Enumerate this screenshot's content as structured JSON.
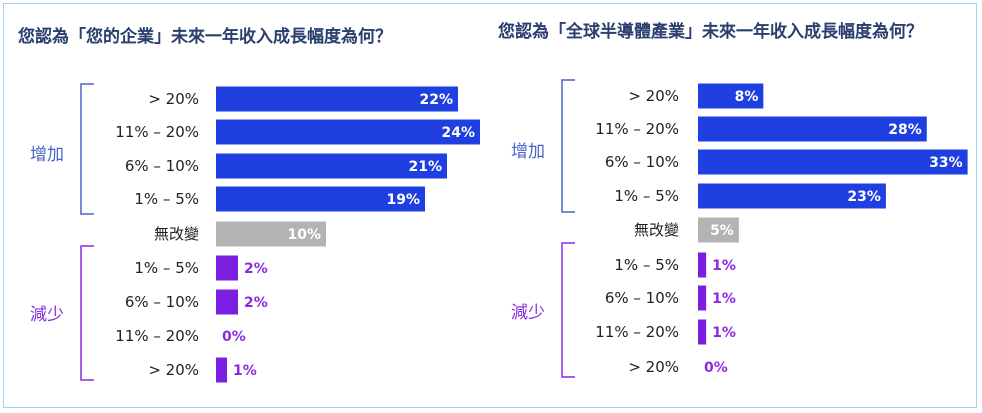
{
  "colors": {
    "increase": "#1f3fe0",
    "nochange": "#b3b3b3",
    "decrease": "#7a1fe0",
    "increase_label": "#4a64c8",
    "decrease_label": "#8a2be2",
    "title": "#2a3f6e"
  },
  "chart_data": [
    {
      "type": "bar",
      "orientation": "horizontal",
      "title": "您認為「您的企業」未來一年收入成長幅度為何？",
      "groups": [
        {
          "label": "增加",
          "categories": [
            "> 20%",
            "11% – 20%",
            "6% – 10%",
            "1% – 5%"
          ],
          "values": [
            22,
            24,
            21,
            19
          ],
          "labels": [
            "22%",
            "24%",
            "21%",
            "19%"
          ]
        },
        {
          "label": "",
          "categories": [
            "無改變"
          ],
          "values": [
            10
          ],
          "labels": [
            "10%"
          ]
        },
        {
          "label": "減少",
          "categories": [
            "1% – 5%",
            "6% – 10%",
            "11% – 20%",
            "> 20%"
          ],
          "values": [
            2,
            2,
            0,
            1
          ],
          "labels": [
            "2%",
            "2%",
            "0%",
            "1%"
          ]
        }
      ]
    },
    {
      "type": "bar",
      "orientation": "horizontal",
      "title": "您認為「全球半導體產業」未來一年收入成長幅度為何？",
      "groups": [
        {
          "label": "增加",
          "categories": [
            "> 20%",
            "11% – 20%",
            "6% – 10%",
            "1% – 5%"
          ],
          "values": [
            8,
            28,
            33,
            23
          ],
          "labels": [
            "8%",
            "28%",
            "33%",
            "23%"
          ]
        },
        {
          "label": "",
          "categories": [
            "無改變"
          ],
          "values": [
            5
          ],
          "labels": [
            "5%"
          ]
        },
        {
          "label": "減少",
          "categories": [
            "1% – 5%",
            "6% – 10%",
            "11% – 20%",
            "> 20%"
          ],
          "values": [
            1,
            1,
            1,
            0
          ],
          "labels": [
            "1%",
            "1%",
            "1%",
            "0%"
          ]
        }
      ]
    }
  ]
}
